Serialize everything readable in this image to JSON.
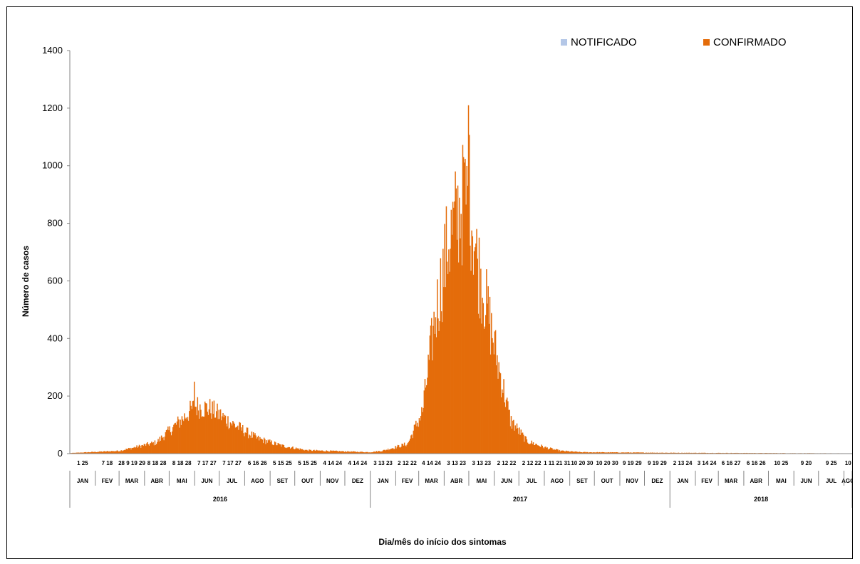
{
  "chart_data": {
    "type": "bar",
    "title": "",
    "xlabel": "Dia/mês do início dos sintomas",
    "ylabel": "Número de casos",
    "ylim": [
      0,
      1400
    ],
    "yticks": [
      0,
      200,
      400,
      600,
      800,
      1000,
      1200,
      1400
    ],
    "grid": false,
    "legend_position": "top-right",
    "series": [
      {
        "name": "NOTIFICADO",
        "color": "#b4c7e7"
      },
      {
        "name": "CONFIRMADO",
        "color": "#e46c0a"
      }
    ],
    "daily_confirmed_envelope": {
      "x": [
        "2016-01-01",
        "2016-03-01",
        "2016-04-15",
        "2016-05-15",
        "2016-06-01",
        "2016-06-20",
        "2016-07-15",
        "2016-08-15",
        "2016-09-15",
        "2016-10-15",
        "2016-12-31",
        "2017-01-15",
        "2017-02-15",
        "2017-03-05",
        "2017-03-20",
        "2017-04-05",
        "2017-04-20",
        "2017-05-01",
        "2017-05-10",
        "2017-05-20",
        "2017-06-05",
        "2017-06-20",
        "2017-07-10",
        "2017-08-01",
        "2017-08-20",
        "2017-09-15",
        "2017-12-31",
        "2018-08-10"
      ],
      "y": [
        2,
        10,
        40,
        120,
        170,
        160,
        110,
        55,
        28,
        12,
        5,
        10,
        35,
        150,
        480,
        750,
        880,
        930,
        700,
        560,
        320,
        120,
        45,
        22,
        10,
        5,
        3,
        1
      ],
      "peaks": [
        {
          "x": "2016-05-31",
          "y": 250
        },
        {
          "x": "2017-04-30",
          "y": 1210
        },
        {
          "x": "2017-04-24",
          "y": 1030
        }
      ]
    },
    "year_labels": [
      "2016",
      "2017",
      "2018"
    ],
    "months": [
      {
        "label": "JAN",
        "days": "1 25",
        "year": 2016
      },
      {
        "label": "FEV",
        "days": "7 18",
        "year": 2016
      },
      {
        "label": "MAR",
        "days": "28 9 19 29",
        "year": 2016
      },
      {
        "label": "ABR",
        "days": "8 18 28",
        "year": 2016
      },
      {
        "label": "MAI",
        "days": "8 18 28",
        "year": 2016
      },
      {
        "label": "JUN",
        "days": "7 17 27",
        "year": 2016
      },
      {
        "label": "JUL",
        "days": "7 17 27",
        "year": 2016
      },
      {
        "label": "AGO",
        "days": "6 16 26",
        "year": 2016
      },
      {
        "label": "SET",
        "days": "5 15 25",
        "year": 2016
      },
      {
        "label": "OUT",
        "days": "5 15 25",
        "year": 2016
      },
      {
        "label": "NOV",
        "days": "4 14 24",
        "year": 2016
      },
      {
        "label": "DEZ",
        "days": "4 14 24",
        "year": 2016
      },
      {
        "label": "JAN",
        "days": "3 13 23",
        "year": 2017
      },
      {
        "label": "FEV",
        "days": "2 12 22",
        "year": 2017
      },
      {
        "label": "MAR",
        "days": "4 14 24",
        "year": 2017
      },
      {
        "label": "ABR",
        "days": "3 13 23",
        "year": 2017
      },
      {
        "label": "MAI",
        "days": "3 13 23",
        "year": 2017
      },
      {
        "label": "JUN",
        "days": "2 12 22",
        "year": 2017
      },
      {
        "label": "JUL",
        "days": "2 12 22",
        "year": 2017
      },
      {
        "label": "AGO",
        "days": "1 11 21 31",
        "year": 2017
      },
      {
        "label": "SET",
        "days": "10 20 30",
        "year": 2017
      },
      {
        "label": "OUT",
        "days": "10 20 30",
        "year": 2017
      },
      {
        "label": "NOV",
        "days": "9 19 29",
        "year": 2017
      },
      {
        "label": "DEZ",
        "days": "9 19 29",
        "year": 2017
      },
      {
        "label": "JAN",
        "days": "2 13 24",
        "year": 2018
      },
      {
        "label": "FEV",
        "days": "3 14 24",
        "year": 2018
      },
      {
        "label": "MAR",
        "days": "6 16 27",
        "year": 2018
      },
      {
        "label": "ABR",
        "days": "6 16 26",
        "year": 2018
      },
      {
        "label": "MAI",
        "days": "10 25",
        "year": 2018
      },
      {
        "label": "JUN",
        "days": "9 20",
        "year": 2018
      },
      {
        "label": "JUL",
        "days": "9 25",
        "year": 2018
      },
      {
        "label": "AGO",
        "days": "10",
        "year": 2018
      }
    ]
  }
}
